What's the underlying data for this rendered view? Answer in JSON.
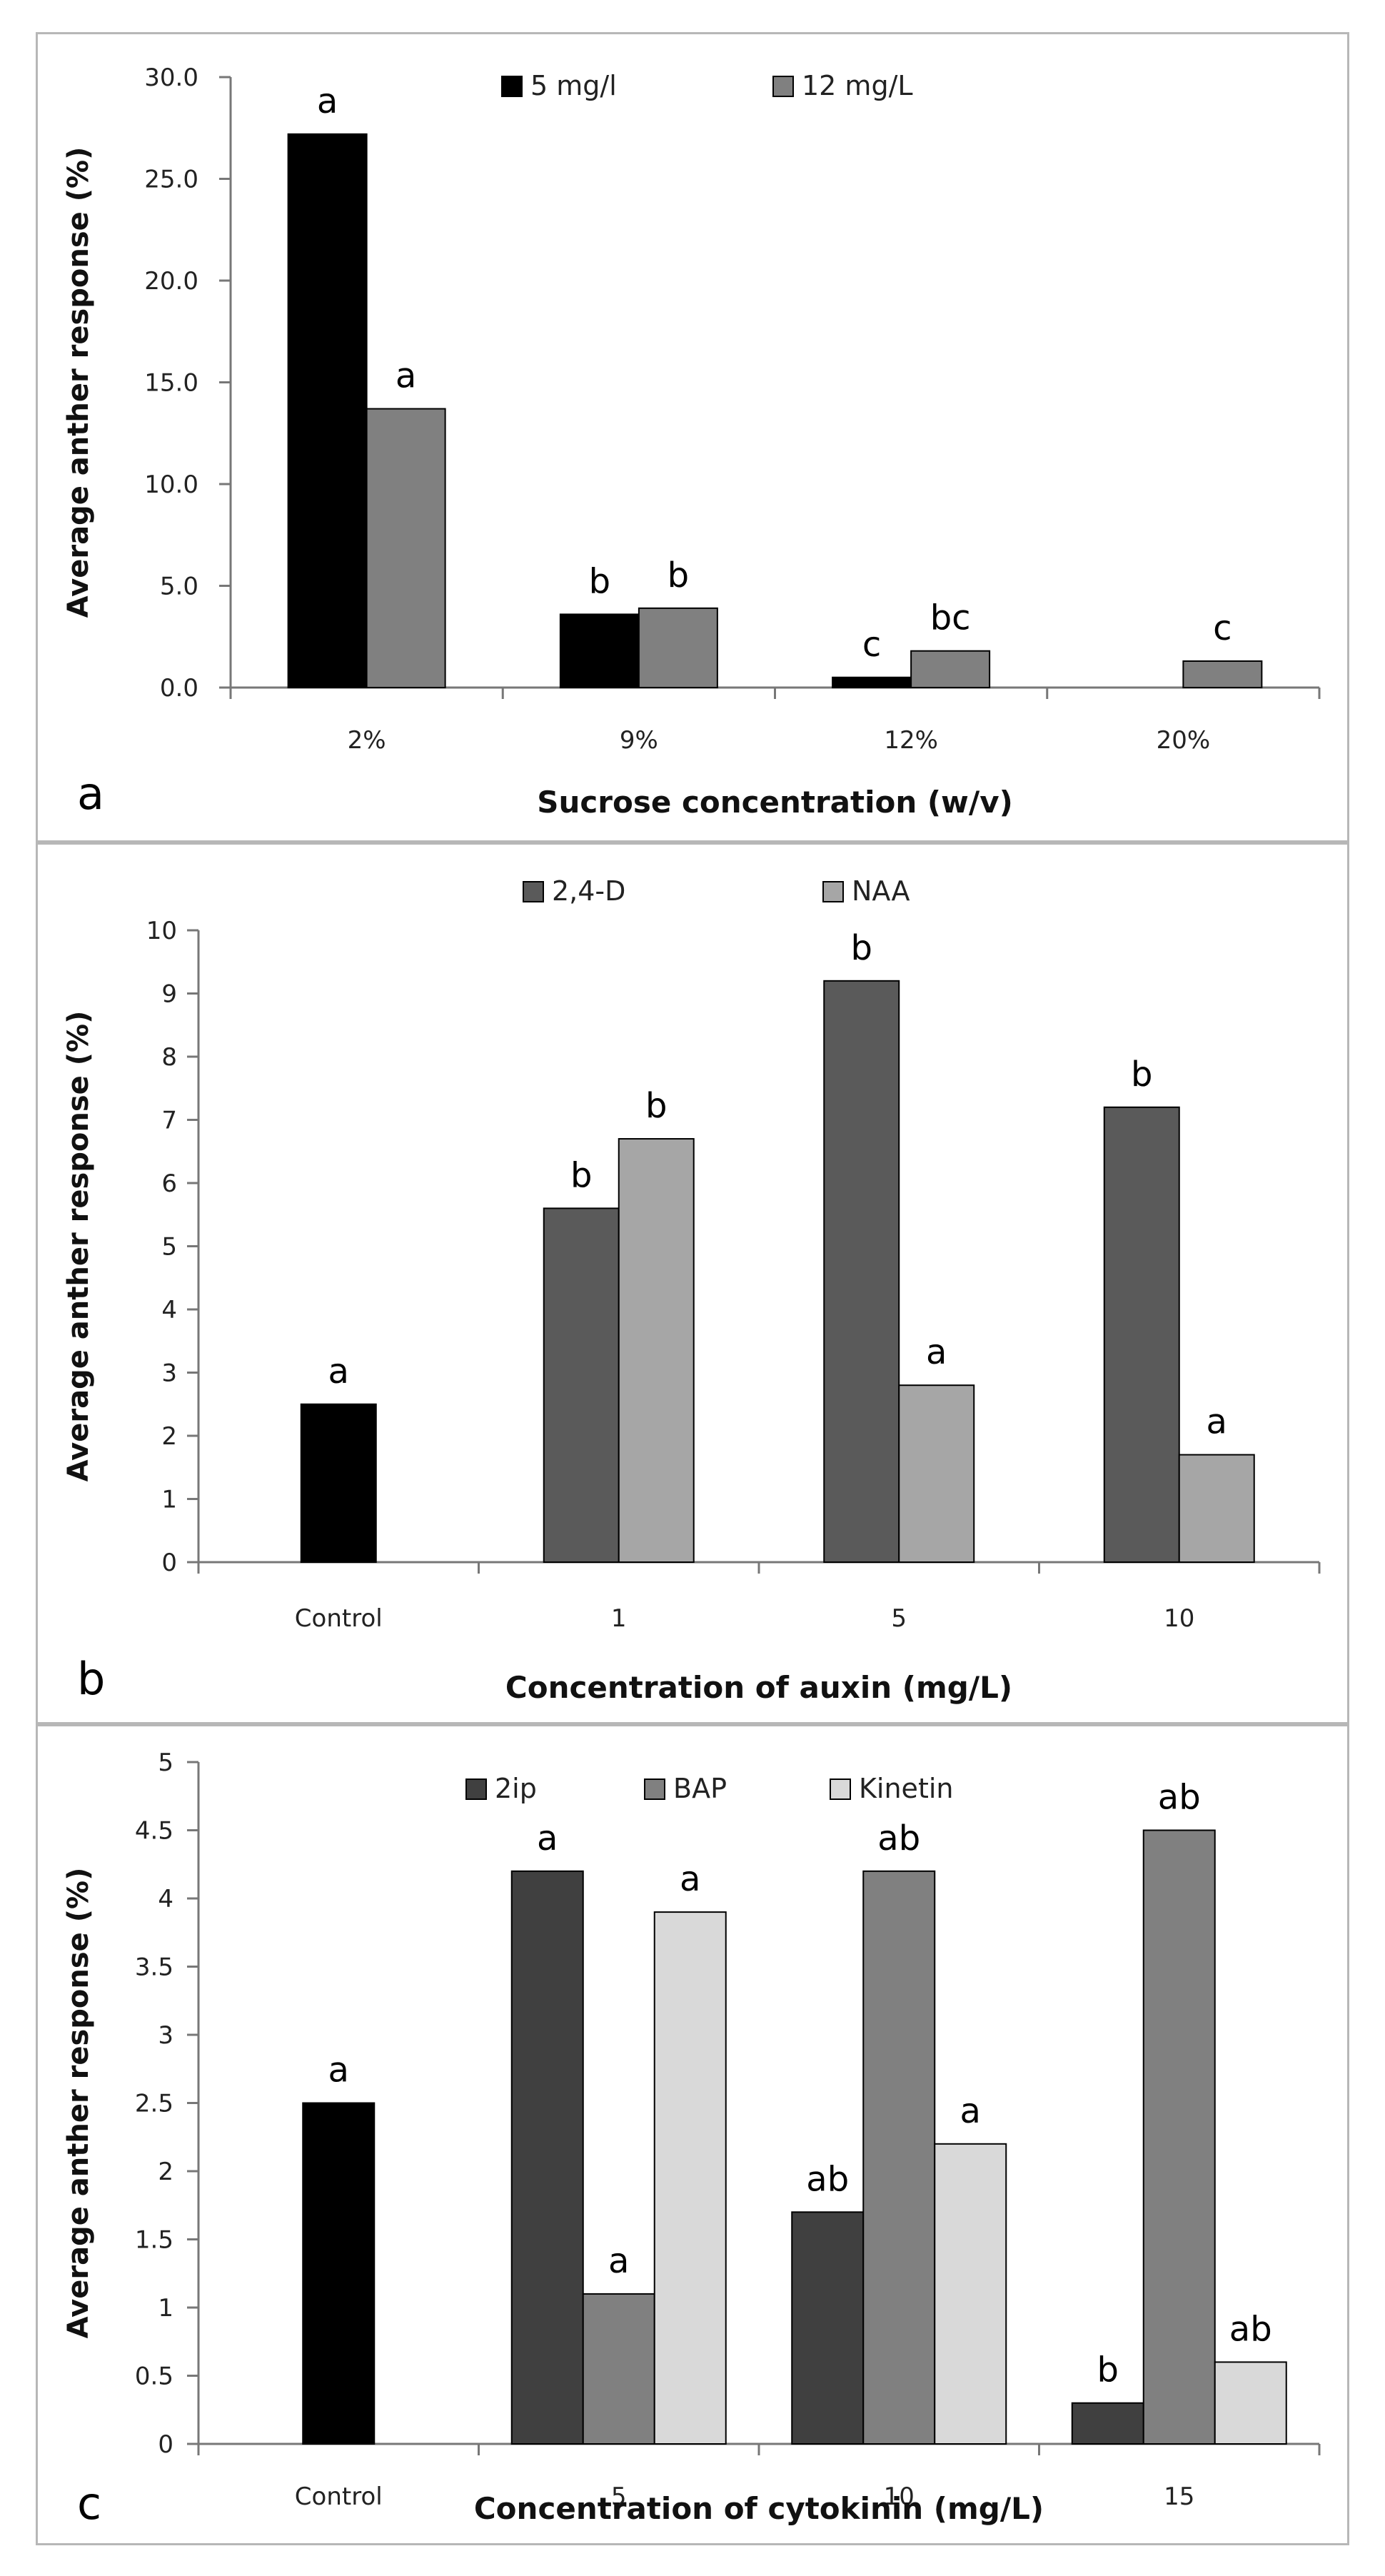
{
  "chart_data": [
    {
      "type": "bar",
      "panel_letter": "a",
      "title": "",
      "xlabel": "Sucrose concentration (w/v)",
      "ylabel": "Average anther response (%)",
      "ylim": [
        0,
        30
      ],
      "yticks": [
        "0.0",
        "5.0",
        "10.0",
        "15.0",
        "20.0",
        "25.0",
        "30.0"
      ],
      "categories": [
        "2%",
        "9%",
        "12%",
        "20%"
      ],
      "legend_position": "top",
      "series": [
        {
          "name": "5 mg/l",
          "color": "#000000",
          "values": [
            27.2,
            3.6,
            0.5,
            0
          ],
          "labels": [
            "a",
            "b",
            "c",
            ""
          ]
        },
        {
          "name": "12 mg/L",
          "color": "#808080",
          "values": [
            13.7,
            3.9,
            1.8,
            1.3
          ],
          "labels": [
            "a",
            "b",
            "bc",
            "c"
          ]
        }
      ]
    },
    {
      "type": "bar",
      "panel_letter": "b",
      "title": "",
      "xlabel": "Concentration of auxin (mg/L)",
      "ylabel": "Average anther response (%)",
      "ylim": [
        0,
        10
      ],
      "yticks": [
        "0",
        "1",
        "2",
        "3",
        "4",
        "5",
        "6",
        "7",
        "8",
        "9",
        "10"
      ],
      "categories": [
        "Control",
        "1",
        "5",
        "10"
      ],
      "legend_position": "top",
      "control": {
        "name": "Control",
        "color": "#000000",
        "value": 2.5,
        "label": "a"
      },
      "series": [
        {
          "name": "2,4-D",
          "color": "#5a5a5a",
          "values": [
            null,
            5.6,
            9.2,
            7.2
          ],
          "labels": [
            "",
            "b",
            "b",
            "b"
          ]
        },
        {
          "name": "NAA",
          "color": "#a6a6a6",
          "values": [
            null,
            6.7,
            2.8,
            1.7
          ],
          "labels": [
            "",
            "b",
            "a",
            "a"
          ]
        }
      ]
    },
    {
      "type": "bar",
      "panel_letter": "c",
      "title": "",
      "xlabel": "Concentration of cytokinin (mg/L)",
      "ylabel": "Average anther response (%)",
      "ylim": [
        0,
        5
      ],
      "yticks": [
        "0",
        "0.5",
        "1",
        "1.5",
        "2",
        "2.5",
        "3",
        "3.5",
        "4",
        "4.5",
        "5"
      ],
      "categories": [
        "Control",
        "5",
        "10",
        "15"
      ],
      "legend_position": "top",
      "control": {
        "name": "Control",
        "color": "#000000",
        "value": 2.5,
        "label": "a"
      },
      "series": [
        {
          "name": "2ip",
          "color": "#404040",
          "values": [
            null,
            4.2,
            1.7,
            0.3
          ],
          "labels": [
            "",
            "a",
            "ab",
            "b"
          ]
        },
        {
          "name": "BAP",
          "color": "#808080",
          "values": [
            null,
            1.1,
            4.2,
            4.5
          ],
          "labels": [
            "",
            "a",
            "ab",
            "ab"
          ]
        },
        {
          "name": "Kinetin",
          "color": "#d9d9d9",
          "values": [
            null,
            3.9,
            2.2,
            0.6
          ],
          "labels": [
            "",
            "a",
            "a",
            "ab"
          ]
        }
      ]
    }
  ]
}
